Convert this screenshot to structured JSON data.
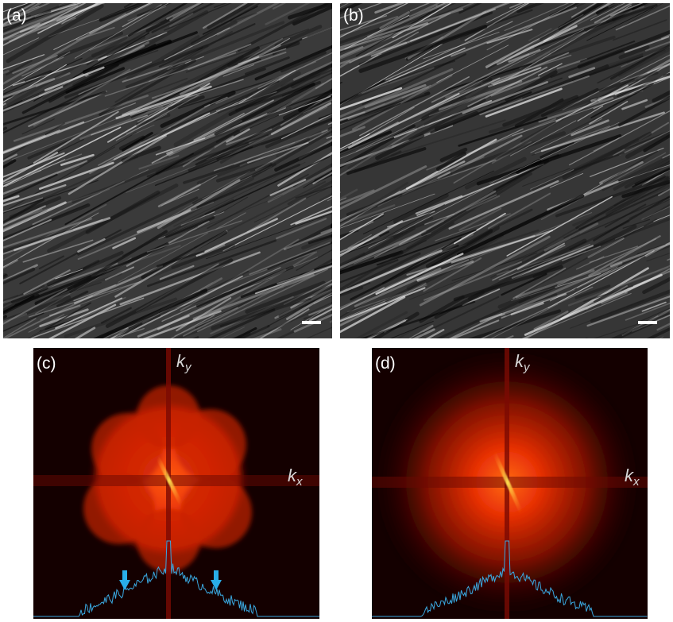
{
  "panels": [
    {
      "label": "(a)"
    },
    {
      "label": "(b)"
    },
    {
      "label": "(c)",
      "ky": {
        "symbol": "k",
        "subscript": "y"
      },
      "kx": {
        "symbol": "k",
        "subscript": "x"
      }
    },
    {
      "label": "(d)",
      "ky": {
        "symbol": "k",
        "subscript": "y"
      },
      "kx": {
        "symbol": "k",
        "subscript": "x"
      }
    }
  ]
}
